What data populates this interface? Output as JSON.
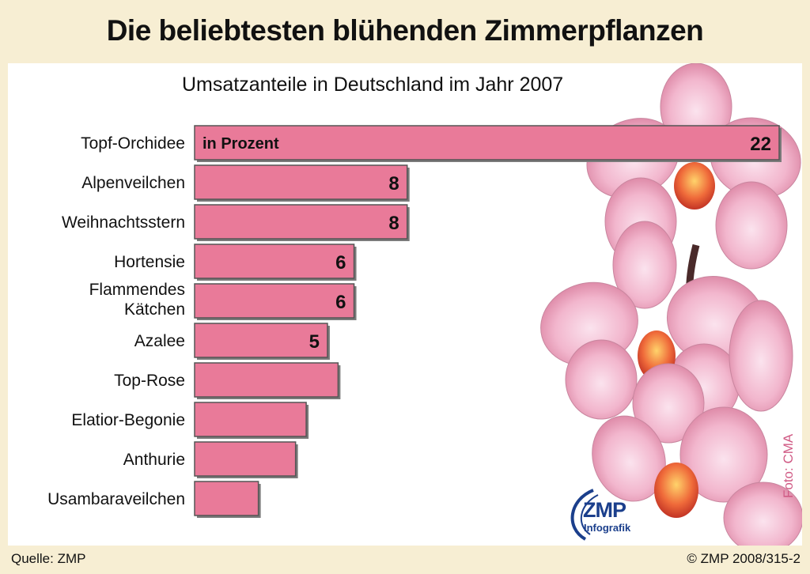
{
  "title": "Die beliebtesten blühenden Zimmerpflanzen",
  "subtitle": "Umsatzanteile in Deutschland im Jahr 2007",
  "unit_label": "in Prozent",
  "source": "Quelle: ZMP",
  "copyright": "© ZMP 2008/315-2",
  "photo_credit": "Foto: CMA",
  "logo": {
    "name": "ZMP",
    "sub": "Infografik"
  },
  "colors": {
    "bar": "#e97a99",
    "bar_border": "#555555",
    "background": "#f7eed3",
    "text": "#111111"
  },
  "chart_data": {
    "type": "bar",
    "orientation": "horizontal",
    "categories": [
      "Topf-Orchidee",
      "Alpenveilchen",
      "Weihnachtsstern",
      "Hortensie",
      "Flammendes Kätchen",
      "Azalee",
      "Top-Rose",
      "Elatior-Begonie",
      "Anthurie",
      "Usambaraveilchen"
    ],
    "values": [
      22,
      8,
      8,
      6,
      6,
      5,
      5.4,
      4.2,
      3.8,
      2.4
    ],
    "data_labels": [
      "22",
      "8",
      "8",
      "6",
      "6",
      "5",
      "",
      "",
      "",
      ""
    ],
    "xlim": [
      0,
      22
    ],
    "grid": false,
    "legend": "none"
  }
}
